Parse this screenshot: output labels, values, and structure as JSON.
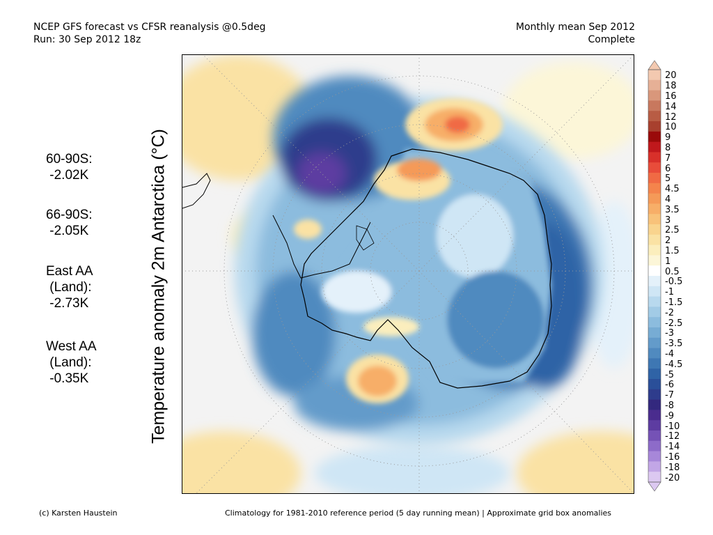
{
  "header": {
    "line1_left": "NCEP GFS forecast vs CFSR reanalysis @0.5deg",
    "line2_left": "Run: 30 Sep 2012 18z",
    "line1_right": "Monthly mean Sep 2012",
    "line2_right": "Complete"
  },
  "stats": [
    {
      "lines": [
        "60-90S:",
        " -2.02K"
      ]
    },
    {
      "lines": [
        "66-90S:",
        " -2.05K"
      ]
    },
    {
      "lines": [
        "East AA",
        " (Land):",
        " -2.73K"
      ]
    },
    {
      "lines": [
        "West AA",
        " (Land):",
        " -0.35K"
      ]
    }
  ],
  "map": {
    "y_label": "Temperature anomaly 2m Antarctica (°C)",
    "projection": "south polar stereographic"
  },
  "colorbar": {
    "labels": [
      "20",
      "18",
      "16",
      "14",
      "12",
      "10",
      "9",
      "8",
      "7",
      "6",
      "5",
      "4.5",
      "4",
      "3.5",
      "3",
      "2.5",
      "2",
      "1.5",
      "1",
      "0.5",
      "-0.5",
      "-1",
      "-1.5",
      "-2",
      "-2.5",
      "-3",
      "-3.5",
      "-4",
      "-4.5",
      "-5",
      "-6",
      "-7",
      "-8",
      "-9",
      "-10",
      "-12",
      "-14",
      "-16",
      "-18",
      "-20"
    ],
    "colors": [
      "#f3c9b0",
      "#e6b096",
      "#d9977b",
      "#c8785e",
      "#b85c44",
      "#a8402e",
      "#9a0a0a",
      "#c0181c",
      "#d8302a",
      "#e84c3a",
      "#f06a44",
      "#f4844c",
      "#f59a58",
      "#f7ae68",
      "#f8c27a",
      "#f9d48e",
      "#fae2a4",
      "#fbeebd",
      "#fcf6d8",
      "#ffffff",
      "#e4f1fa",
      "#cfe6f5",
      "#b8d9ee",
      "#a2cbe6",
      "#8cbcde",
      "#77acd4",
      "#639bca",
      "#508abf",
      "#3e77b3",
      "#2f63a6",
      "#2a4f99",
      "#2e3c8c",
      "#33287e",
      "#4a2c8e",
      "#5d3ca1",
      "#7552b6",
      "#8d6bc9",
      "#a787d9",
      "#c2a6e6",
      "#dcc8f1"
    ]
  },
  "footer": {
    "left": "(c) Karsten Haustein",
    "right": "Climatology for 1981-2010 reference period (5 day running mean) | Approximate grid box anomalies"
  }
}
